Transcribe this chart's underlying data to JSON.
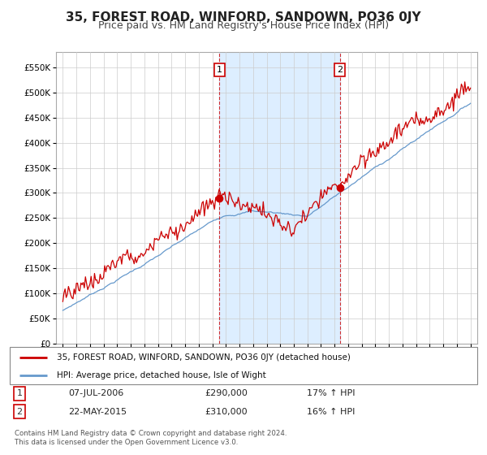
{
  "title": "35, FOREST ROAD, WINFORD, SANDOWN, PO36 0JY",
  "subtitle": "Price paid vs. HM Land Registry's House Price Index (HPI)",
  "title_fontsize": 11,
  "subtitle_fontsize": 9,
  "background_color": "#ffffff",
  "plot_bg_color": "#ffffff",
  "grid_color": "#cccccc",
  "red_color": "#cc0000",
  "blue_color": "#6699cc",
  "fill_color": "#ddeeff",
  "transaction1": {
    "date": "07-JUL-2006",
    "price": 290000,
    "hpi_pct": "17%",
    "label": "1"
  },
  "transaction2": {
    "date": "22-MAY-2015",
    "price": 310000,
    "hpi_pct": "16%",
    "label": "2"
  },
  "vline1_x": 2006.52,
  "vline2_x": 2015.39,
  "ylim": [
    0,
    580000
  ],
  "yticks": [
    0,
    50000,
    100000,
    150000,
    200000,
    250000,
    300000,
    350000,
    400000,
    450000,
    500000,
    550000
  ],
  "xlim": [
    1994.5,
    2025.5
  ],
  "xticks": [
    1995,
    1996,
    1997,
    1998,
    1999,
    2000,
    2001,
    2002,
    2003,
    2004,
    2005,
    2006,
    2007,
    2008,
    2009,
    2010,
    2011,
    2012,
    2013,
    2014,
    2015,
    2016,
    2017,
    2018,
    2019,
    2020,
    2021,
    2022,
    2023,
    2024,
    2025
  ],
  "legend_label_red": "35, FOREST ROAD, WINFORD, SANDOWN, PO36 0JY (detached house)",
  "legend_label_blue": "HPI: Average price, detached house, Isle of Wight",
  "footer": "Contains HM Land Registry data © Crown copyright and database right 2024.\nThis data is licensed under the Open Government Licence v3.0."
}
